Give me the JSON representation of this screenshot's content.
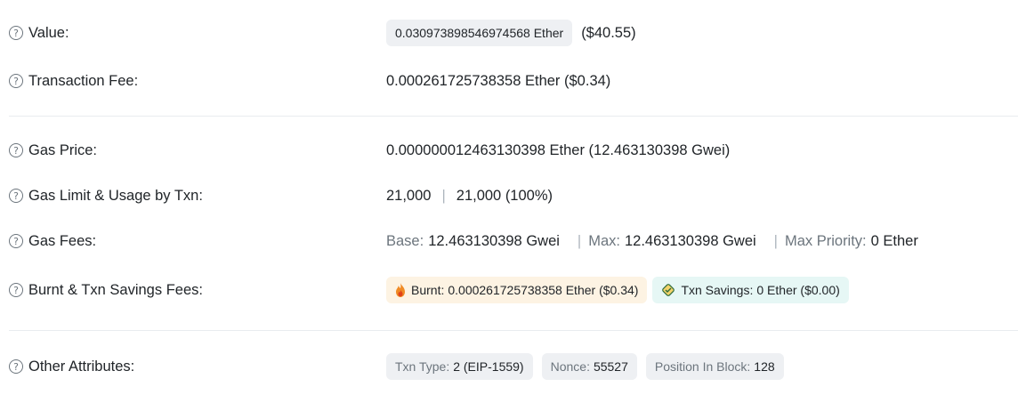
{
  "value": {
    "label": "Value:",
    "amount": "0.030973898546974568 Ether",
    "usd": "($40.55)"
  },
  "transaction_fee": {
    "label": "Transaction Fee:",
    "amount": "0.000261725738358 Ether ($0.34)"
  },
  "gas_price": {
    "label": "Gas Price:",
    "amount": "0.000000012463130398 Ether (12.463130398 Gwei)"
  },
  "gas_limit": {
    "label": "Gas Limit & Usage by Txn:",
    "limit": "21,000",
    "separator": "|",
    "usage": "21,000 (100%)"
  },
  "gas_fees": {
    "label": "Gas Fees:",
    "base_label": "Base:",
    "base_value": "12.463130398 Gwei",
    "max_label": "Max:",
    "max_value": "12.463130398 Gwei",
    "max_priority_label": "Max Priority:",
    "max_priority_value": "0 Ether",
    "separator": "|"
  },
  "burnt_savings": {
    "label": "Burnt & Txn Savings Fees:",
    "burnt_label": "Burnt:",
    "burnt_value": "0.000261725738358 Ether ($0.34)",
    "savings_label": "Txn Savings:",
    "savings_value": "0 Ether ($0.00)"
  },
  "other_attributes": {
    "label": "Other Attributes:",
    "items": [
      {
        "key": "Txn Type:",
        "value": "2 (EIP-1559)"
      },
      {
        "key": "Nonce:",
        "value": "55527"
      },
      {
        "key": "Position In Block:",
        "value": "128"
      }
    ]
  },
  "icons": {
    "help": "question-circle-icon",
    "burnt": "flame-icon",
    "savings": "savings-icon"
  },
  "colors": {
    "burnt_bg": "#fdf3e3",
    "savings_bg": "#e6f7f5",
    "pill_bg": "#eef0f3",
    "muted": "#6c757d"
  }
}
